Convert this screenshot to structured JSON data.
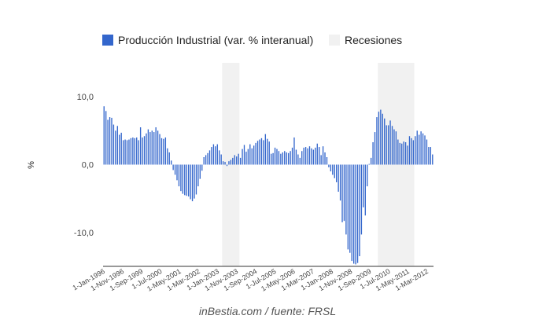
{
  "chart_data": {
    "type": "bar",
    "title": "",
    "xlabel": "",
    "ylabel": "%",
    "ylim": [
      -15,
      15
    ],
    "y_ticks": [
      10,
      0,
      -10
    ],
    "y_tick_labels": [
      "10,0",
      "0,0",
      "-10,0"
    ],
    "grid": false,
    "legend_position": "top",
    "series": [
      {
        "name": "Producción Industrial (var. % interanual)",
        "color": "#3366cc",
        "start": "1996-01",
        "frequency": "monthly",
        "values": [
          8.6,
          7.9,
          6.6,
          7.0,
          6.9,
          5.9,
          5.0,
          5.7,
          4.4,
          4.7,
          3.6,
          3.7,
          3.6,
          3.7,
          3.9,
          4.0,
          3.9,
          4.0,
          3.6,
          5.5,
          4.0,
          4.2,
          4.6,
          5.2,
          4.8,
          5.0,
          4.8,
          5.5,
          5.0,
          4.5,
          3.9,
          3.8,
          4.0,
          2.4,
          1.8,
          0.6,
          -0.8,
          -1.5,
          -2.3,
          -3.2,
          -3.9,
          -4.3,
          -4.5,
          -4.6,
          -4.7,
          -5.1,
          -5.4,
          -5.0,
          -4.4,
          -3.2,
          -2.1,
          -0.9,
          1.1,
          1.4,
          1.7,
          2.1,
          2.6,
          3.0,
          2.7,
          3.0,
          2.1,
          1.5,
          0.5,
          0.4,
          -0.2,
          0.5,
          0.7,
          1.0,
          1.4,
          1.2,
          1.6,
          1.0,
          2.3,
          2.9,
          1.9,
          2.3,
          3.0,
          2.4,
          2.8,
          3.2,
          3.5,
          3.7,
          3.9,
          3.6,
          4.5,
          3.8,
          3.4,
          1.6,
          1.7,
          2.5,
          2.3,
          2.0,
          1.6,
          1.8,
          2.0,
          1.8,
          1.7,
          2.0,
          2.5,
          4.0,
          2.2,
          1.5,
          1.0,
          2.0,
          2.5,
          2.6,
          2.4,
          2.7,
          2.4,
          2.2,
          2.5,
          3.1,
          2.6,
          1.4,
          2.7,
          1.8,
          1.1,
          -0.4,
          -1.0,
          -1.5,
          -2.0,
          -2.6,
          -4.0,
          -5.3,
          -8.5,
          -8.3,
          -10.3,
          -12.5,
          -13.0,
          -14.2,
          -14.6,
          -14.7,
          -14.5,
          -13.5,
          -10.3,
          -6.3,
          -7.5,
          -3.2,
          0.1,
          1.0,
          3.3,
          4.8,
          7.0,
          7.8,
          8.1,
          7.5,
          6.8,
          5.8,
          5.8,
          6.5,
          5.7,
          5.2,
          4.9,
          3.7,
          3.2,
          3.1,
          3.4,
          3.3,
          2.8,
          4.2,
          3.9,
          3.6,
          4.2,
          5.0,
          4.4,
          4.9,
          4.6,
          4.3,
          3.7,
          2.6,
          2.6,
          1.5
        ]
      },
      {
        "name": "Recesiones",
        "color": "#f1f1f1",
        "periods": [
          [
            "2001-03",
            "2001-11"
          ],
          [
            "2007-12",
            "2009-06"
          ]
        ]
      }
    ],
    "x_tick_labels": [
      "1-Jan-1996",
      "1-Nov-1996",
      "1-Sep-1999",
      "1-Jul-2000",
      "1-May-2001",
      "1-Mar-2002",
      "1-Jan-2003",
      "1-Nov-2003",
      "1-Sep-2004",
      "1-Jul-2005",
      "1-May-2006",
      "1-Mar-2007",
      "1-Jan-2008",
      "1-Nov-2008",
      "1-Sep-2009",
      "1-Jul-2010",
      "1-May-2011",
      "1-Mar-2012"
    ]
  },
  "footer": {
    "source": "inBestia.com / fuente: FRSL"
  }
}
